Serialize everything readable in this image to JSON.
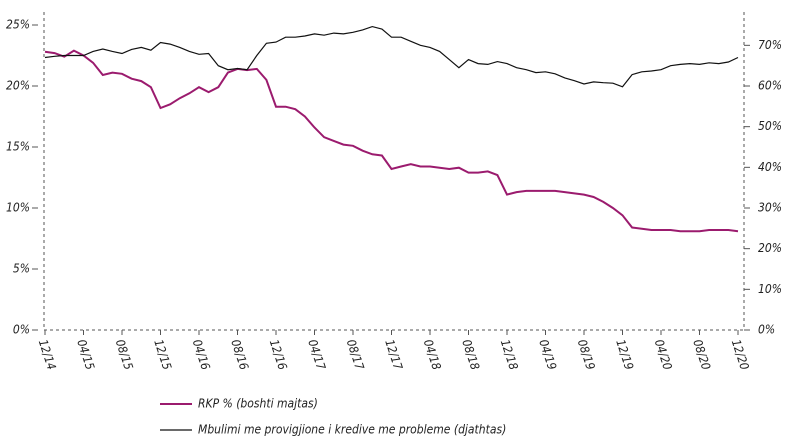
{
  "chart_data": {
    "type": "line",
    "categories": [
      "12/14",
      null,
      null,
      null,
      "04/15",
      null,
      null,
      null,
      "08/15",
      null,
      null,
      null,
      "12/15",
      null,
      null,
      null,
      "04/16",
      null,
      null,
      null,
      "08/16",
      null,
      null,
      null,
      "12/16",
      null,
      null,
      null,
      "04/17",
      null,
      null,
      null,
      "08/17",
      null,
      null,
      null,
      "12/17",
      null,
      null,
      null,
      "04/18",
      null,
      null,
      null,
      "08/18",
      null,
      null,
      null,
      "12/18",
      null,
      null,
      null,
      "04/19",
      null,
      null,
      null,
      "08/19",
      null,
      null,
      null,
      "12/19",
      null,
      null,
      null,
      "04/20",
      null,
      null,
      null,
      "08/20",
      null,
      null,
      null,
      "12/20"
    ],
    "series": [
      {
        "name": "RKP % (boshti majtas)",
        "color": "#9b1b6e",
        "values": [
          22.8,
          22.7,
          22.4,
          22.9,
          22.5,
          21.9,
          20.9,
          21.1,
          21.0,
          20.6,
          20.4,
          19.9,
          18.2,
          18.5,
          19.0,
          19.4,
          19.9,
          19.5,
          19.9,
          21.1,
          21.4,
          21.3,
          21.4,
          20.5,
          18.3,
          18.3,
          18.1,
          17.5,
          16.6,
          15.8,
          15.5,
          15.2,
          15.1,
          14.7,
          14.4,
          14.3,
          13.2,
          13.4,
          13.6,
          13.4,
          13.4,
          13.3,
          13.2,
          13.3,
          12.9,
          12.9,
          13.0,
          12.7,
          11.1,
          11.3,
          11.4,
          11.4,
          11.4,
          11.4,
          11.3,
          11.2,
          11.1,
          10.9,
          10.5,
          10.0,
          9.4,
          8.4,
          8.3,
          8.2,
          8.2,
          8.2,
          8.1,
          8.1,
          8.1,
          8.2,
          8.2,
          8.2,
          8.1
        ]
      },
      {
        "name": "Mbulimi me provigjione i kredive me probleme (djathtas)",
        "color": "#111111",
        "axis": "y2",
        "values": [
          67.0,
          67.3,
          67.5,
          67.5,
          67.5,
          68.5,
          69.1,
          68.5,
          68.0,
          69.0,
          69.5,
          68.8,
          70.7,
          70.3,
          69.5,
          68.5,
          67.8,
          68.0,
          65.0,
          64.0,
          64.3,
          64.0,
          67.5,
          70.5,
          70.8,
          72.0,
          72.0,
          72.3,
          72.8,
          72.5,
          73.0,
          72.8,
          73.2,
          73.8,
          74.6,
          74.0,
          72.0,
          72.0,
          71.0,
          70.0,
          69.5,
          68.5,
          66.5,
          64.5,
          66.5,
          65.5,
          65.3,
          66.0,
          65.5,
          64.5,
          64.0,
          63.3,
          63.5,
          63.0,
          62.0,
          61.3,
          60.5,
          61.0,
          60.8,
          60.7,
          59.8,
          62.8,
          63.5,
          63.7,
          64.0,
          65.0,
          65.3,
          65.5,
          65.3,
          65.7,
          65.5,
          65.9,
          67.0
        ]
      }
    ],
    "ylim": [
      0,
      25
    ],
    "yticks": [
      {
        "value": 0,
        "label": "0%"
      },
      {
        "value": 5,
        "label": "5%"
      },
      {
        "value": 10,
        "label": "10%"
      },
      {
        "value": 15,
        "label": "15%"
      },
      {
        "value": 20,
        "label": "20%"
      },
      {
        "value": 25,
        "label": "25%"
      }
    ],
    "y2lim": [
      0,
      75
    ],
    "y2ticks": [
      {
        "value": 0,
        "label": "0%"
      },
      {
        "value": 10,
        "label": "10%"
      },
      {
        "value": 20,
        "label": "20%"
      },
      {
        "value": 30,
        "label": "30%"
      },
      {
        "value": 40,
        "label": "40%"
      },
      {
        "value": 50,
        "label": "50%"
      },
      {
        "value": 60,
        "label": "60%"
      },
      {
        "value": 70,
        "label": "70%"
      }
    ],
    "grid": false
  }
}
